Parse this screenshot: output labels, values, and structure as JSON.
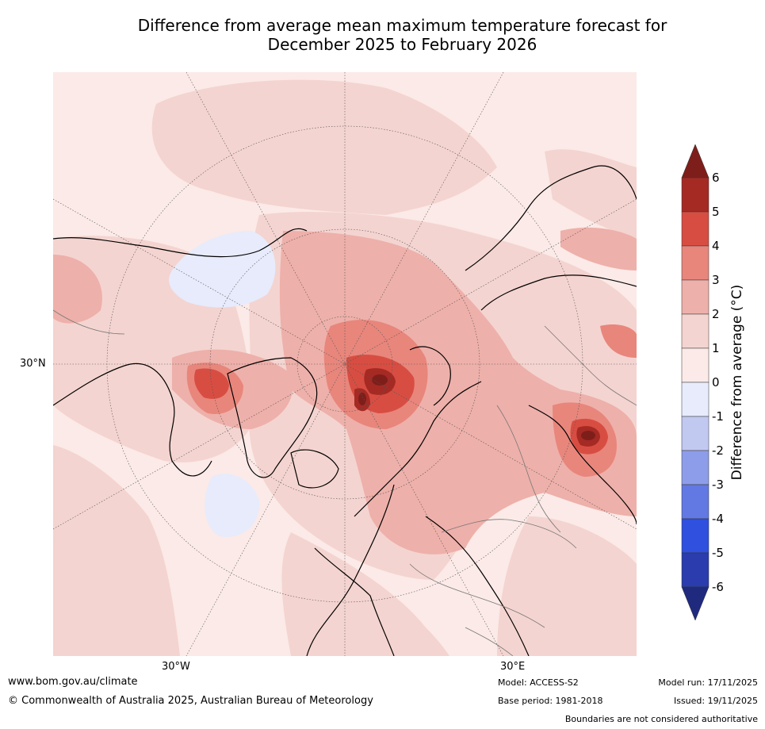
{
  "title_line1": "Difference from average mean maximum temperature forecast for",
  "title_line2": "December 2025 to February 2026",
  "labels": {
    "lat_30n": "30°N",
    "lon_30w": "30°W",
    "lon_30e": "30°E"
  },
  "colorbar": {
    "title": "Difference from average (°C)",
    "ticks": [
      "6",
      "5",
      "4",
      "3",
      "2",
      "1",
      "0",
      "-1",
      "-2",
      "-3",
      "-4",
      "-5",
      "-6"
    ],
    "colors_top_to_bottom": [
      "#a52a24",
      "#d84d42",
      "#e8867c",
      "#eeb0aa",
      "#f4d4d0",
      "#fbeae7",
      "#e7ebfb",
      "#c1c9f1",
      "#8e9dea",
      "#6279e3",
      "#3050e0",
      "#2a3cae"
    ],
    "overflow_high": "#7e1e1a",
    "overflow_low": "#1f2a7e"
  },
  "colors": {
    "level_0_1": "#fbeae7",
    "level_1_2": "#f4d4d0",
    "level_2_3": "#eeb0aa",
    "level_3_4": "#e8867c",
    "level_4_5": "#d84d42",
    "level_5_6": "#a52a24",
    "level_gt6": "#7e1e1a",
    "level_m1_0": "#e7ebfb"
  },
  "footer": {
    "url": "www.bom.gov.au/climate",
    "copyright": "© Commonwealth of Australia 2025, Australian Bureau of Meteorology",
    "model": "Model: ACCESS-S2",
    "base_period": "Base period: 1981-2018",
    "model_run": "Model run: 17/11/2025",
    "issued": "Issued: 19/11/2025",
    "disclaimer": "Boundaries are not considered authoritative"
  }
}
